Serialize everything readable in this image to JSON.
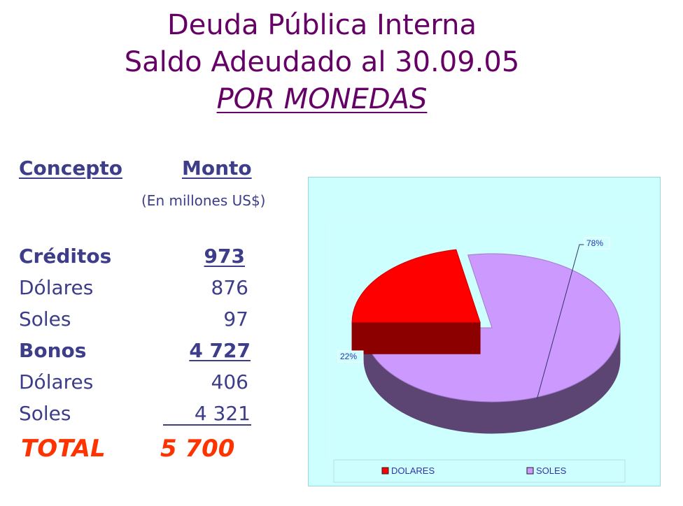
{
  "header": {
    "title": "Deuda Pública Interna",
    "subtitle": "Saldo Adeudado al 30.09.05",
    "section": "POR MONEDAS"
  },
  "table": {
    "col_concept": "Concepto",
    "col_amount": "Monto",
    "unit": "(En millones US$)",
    "rows": [
      {
        "label": "Créditos",
        "value": "973"
      },
      {
        "label": "Dólares",
        "value": "876"
      },
      {
        "label": "Soles",
        "value": "97"
      },
      {
        "label": "Bonos",
        "value": "4 727"
      },
      {
        "label": "Dólares",
        "value": "406"
      },
      {
        "label": "Soles",
        "value": "4 321"
      }
    ],
    "total_label": "TOTAL",
    "total_value": "5  700"
  },
  "chart_data": {
    "type": "pie",
    "categories": [
      "DOLARES",
      "SOLES"
    ],
    "values": [
      22,
      78
    ],
    "labels": [
      "22%",
      "78%"
    ],
    "colors": [
      "#ff0000",
      "#cc99ff"
    ],
    "legend": "bottom",
    "style": "3d-exploded"
  }
}
